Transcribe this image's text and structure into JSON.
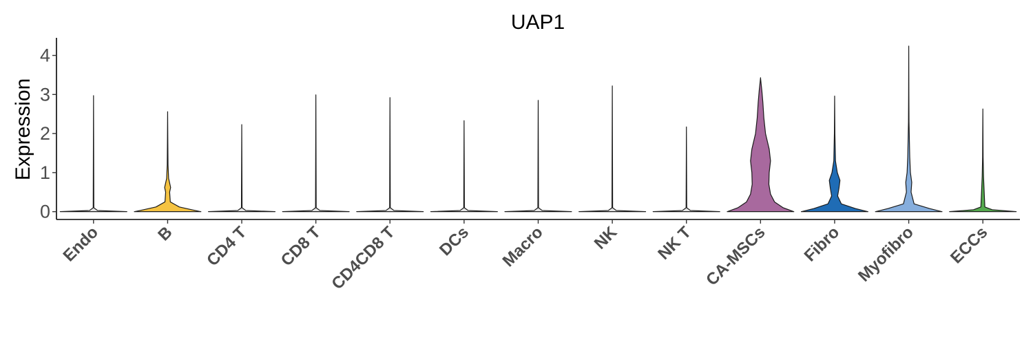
{
  "chart_data": {
    "type": "violin",
    "title": "UAP1",
    "xlabel": "",
    "ylabel": "Expression",
    "ylim": [
      -0.2,
      4.45
    ],
    "yticks": [
      0,
      1,
      2,
      3,
      4
    ],
    "grid": false,
    "legend": "none",
    "categories": [
      "Endo",
      "B",
      "CD4 T",
      "CD8 T",
      "CD4CD8 T",
      "DCs",
      "Macro",
      "NK",
      "NK T",
      "CA-MSCs",
      "Fibro",
      "Myofibro",
      "ECCs"
    ],
    "series": [
      {
        "category": "Endo",
        "color": "#E5E5E5",
        "max": 2.97,
        "profile": [
          [
            0,
            1.0
          ],
          [
            0.03,
            0.12
          ],
          [
            0.1,
            0.01
          ],
          [
            2.97,
            0.0
          ]
        ]
      },
      {
        "category": "B",
        "color": "#F5C342",
        "max": 2.56,
        "profile": [
          [
            0,
            1.0
          ],
          [
            0.05,
            0.72
          ],
          [
            0.12,
            0.35
          ],
          [
            0.25,
            0.08
          ],
          [
            0.5,
            0.06
          ],
          [
            0.62,
            0.09
          ],
          [
            0.85,
            0.03
          ],
          [
            1.2,
            0.012
          ],
          [
            1.8,
            0.006
          ],
          [
            2.56,
            0.0
          ]
        ]
      },
      {
        "category": "CD4 T",
        "color": "#E5E5E5",
        "max": 2.23,
        "profile": [
          [
            0,
            1.0
          ],
          [
            0.03,
            0.12
          ],
          [
            0.1,
            0.01
          ],
          [
            2.23,
            0.0
          ]
        ]
      },
      {
        "category": "CD8 T",
        "color": "#E5E5E5",
        "max": 2.99,
        "profile": [
          [
            0,
            1.0
          ],
          [
            0.03,
            0.12
          ],
          [
            0.1,
            0.01
          ],
          [
            2.99,
            0.0
          ]
        ]
      },
      {
        "category": "CD4CD8 T",
        "color": "#E5E5E5",
        "max": 2.92,
        "profile": [
          [
            0,
            1.0
          ],
          [
            0.03,
            0.12
          ],
          [
            0.1,
            0.01
          ],
          [
            2.92,
            0.0
          ]
        ]
      },
      {
        "category": "DCs",
        "color": "#E5E5E5",
        "max": 2.33,
        "profile": [
          [
            0,
            1.0
          ],
          [
            0.03,
            0.12
          ],
          [
            0.1,
            0.01
          ],
          [
            2.33,
            0.0
          ]
        ]
      },
      {
        "category": "Macro",
        "color": "#E5E5E5",
        "max": 2.85,
        "profile": [
          [
            0,
            1.0
          ],
          [
            0.03,
            0.12
          ],
          [
            0.1,
            0.01
          ],
          [
            2.85,
            0.0
          ]
        ]
      },
      {
        "category": "NK",
        "color": "#E5E5E5",
        "max": 3.22,
        "profile": [
          [
            0,
            1.0
          ],
          [
            0.03,
            0.12
          ],
          [
            0.1,
            0.01
          ],
          [
            3.22,
            0.0
          ]
        ]
      },
      {
        "category": "NK T",
        "color": "#E5E5E5",
        "max": 2.17,
        "profile": [
          [
            0,
            1.0
          ],
          [
            0.03,
            0.12
          ],
          [
            0.1,
            0.01
          ],
          [
            2.17,
            0.0
          ]
        ]
      },
      {
        "category": "CA-MSCs",
        "color": "#A8699E",
        "max": 3.43,
        "profile": [
          [
            0,
            1.0
          ],
          [
            0.1,
            0.68
          ],
          [
            0.25,
            0.42
          ],
          [
            0.45,
            0.3
          ],
          [
            0.7,
            0.25
          ],
          [
            1.0,
            0.26
          ],
          [
            1.3,
            0.3
          ],
          [
            1.6,
            0.26
          ],
          [
            2.0,
            0.15
          ],
          [
            2.4,
            0.1
          ],
          [
            2.8,
            0.07
          ],
          [
            3.1,
            0.04
          ],
          [
            3.3,
            0.015
          ],
          [
            3.43,
            0.0
          ]
        ]
      },
      {
        "category": "Fibro",
        "color": "#1F6CB5",
        "max": 2.96,
        "profile": [
          [
            0,
            1.0
          ],
          [
            0.08,
            0.62
          ],
          [
            0.2,
            0.2
          ],
          [
            0.4,
            0.09
          ],
          [
            0.6,
            0.13
          ],
          [
            0.8,
            0.16
          ],
          [
            1.0,
            0.08
          ],
          [
            1.3,
            0.025
          ],
          [
            2.0,
            0.008
          ],
          [
            2.96,
            0.0
          ]
        ]
      },
      {
        "category": "Myofibro",
        "color": "#86AEDD",
        "max": 4.24,
        "profile": [
          [
            0,
            1.0
          ],
          [
            0.08,
            0.62
          ],
          [
            0.2,
            0.16
          ],
          [
            0.5,
            0.07
          ],
          [
            0.75,
            0.09
          ],
          [
            1.0,
            0.05
          ],
          [
            1.4,
            0.03
          ],
          [
            1.8,
            0.02
          ],
          [
            2.3,
            0.008
          ],
          [
            3.0,
            0.004
          ],
          [
            4.24,
            0.0
          ]
        ]
      },
      {
        "category": "ECCs",
        "color": "#55AA4E",
        "max": 2.63,
        "profile": [
          [
            0,
            1.0
          ],
          [
            0.05,
            0.28
          ],
          [
            0.12,
            0.06
          ],
          [
            0.4,
            0.045
          ],
          [
            0.6,
            0.035
          ],
          [
            0.9,
            0.02
          ],
          [
            1.4,
            0.008
          ],
          [
            2.63,
            0.0
          ]
        ]
      }
    ]
  }
}
